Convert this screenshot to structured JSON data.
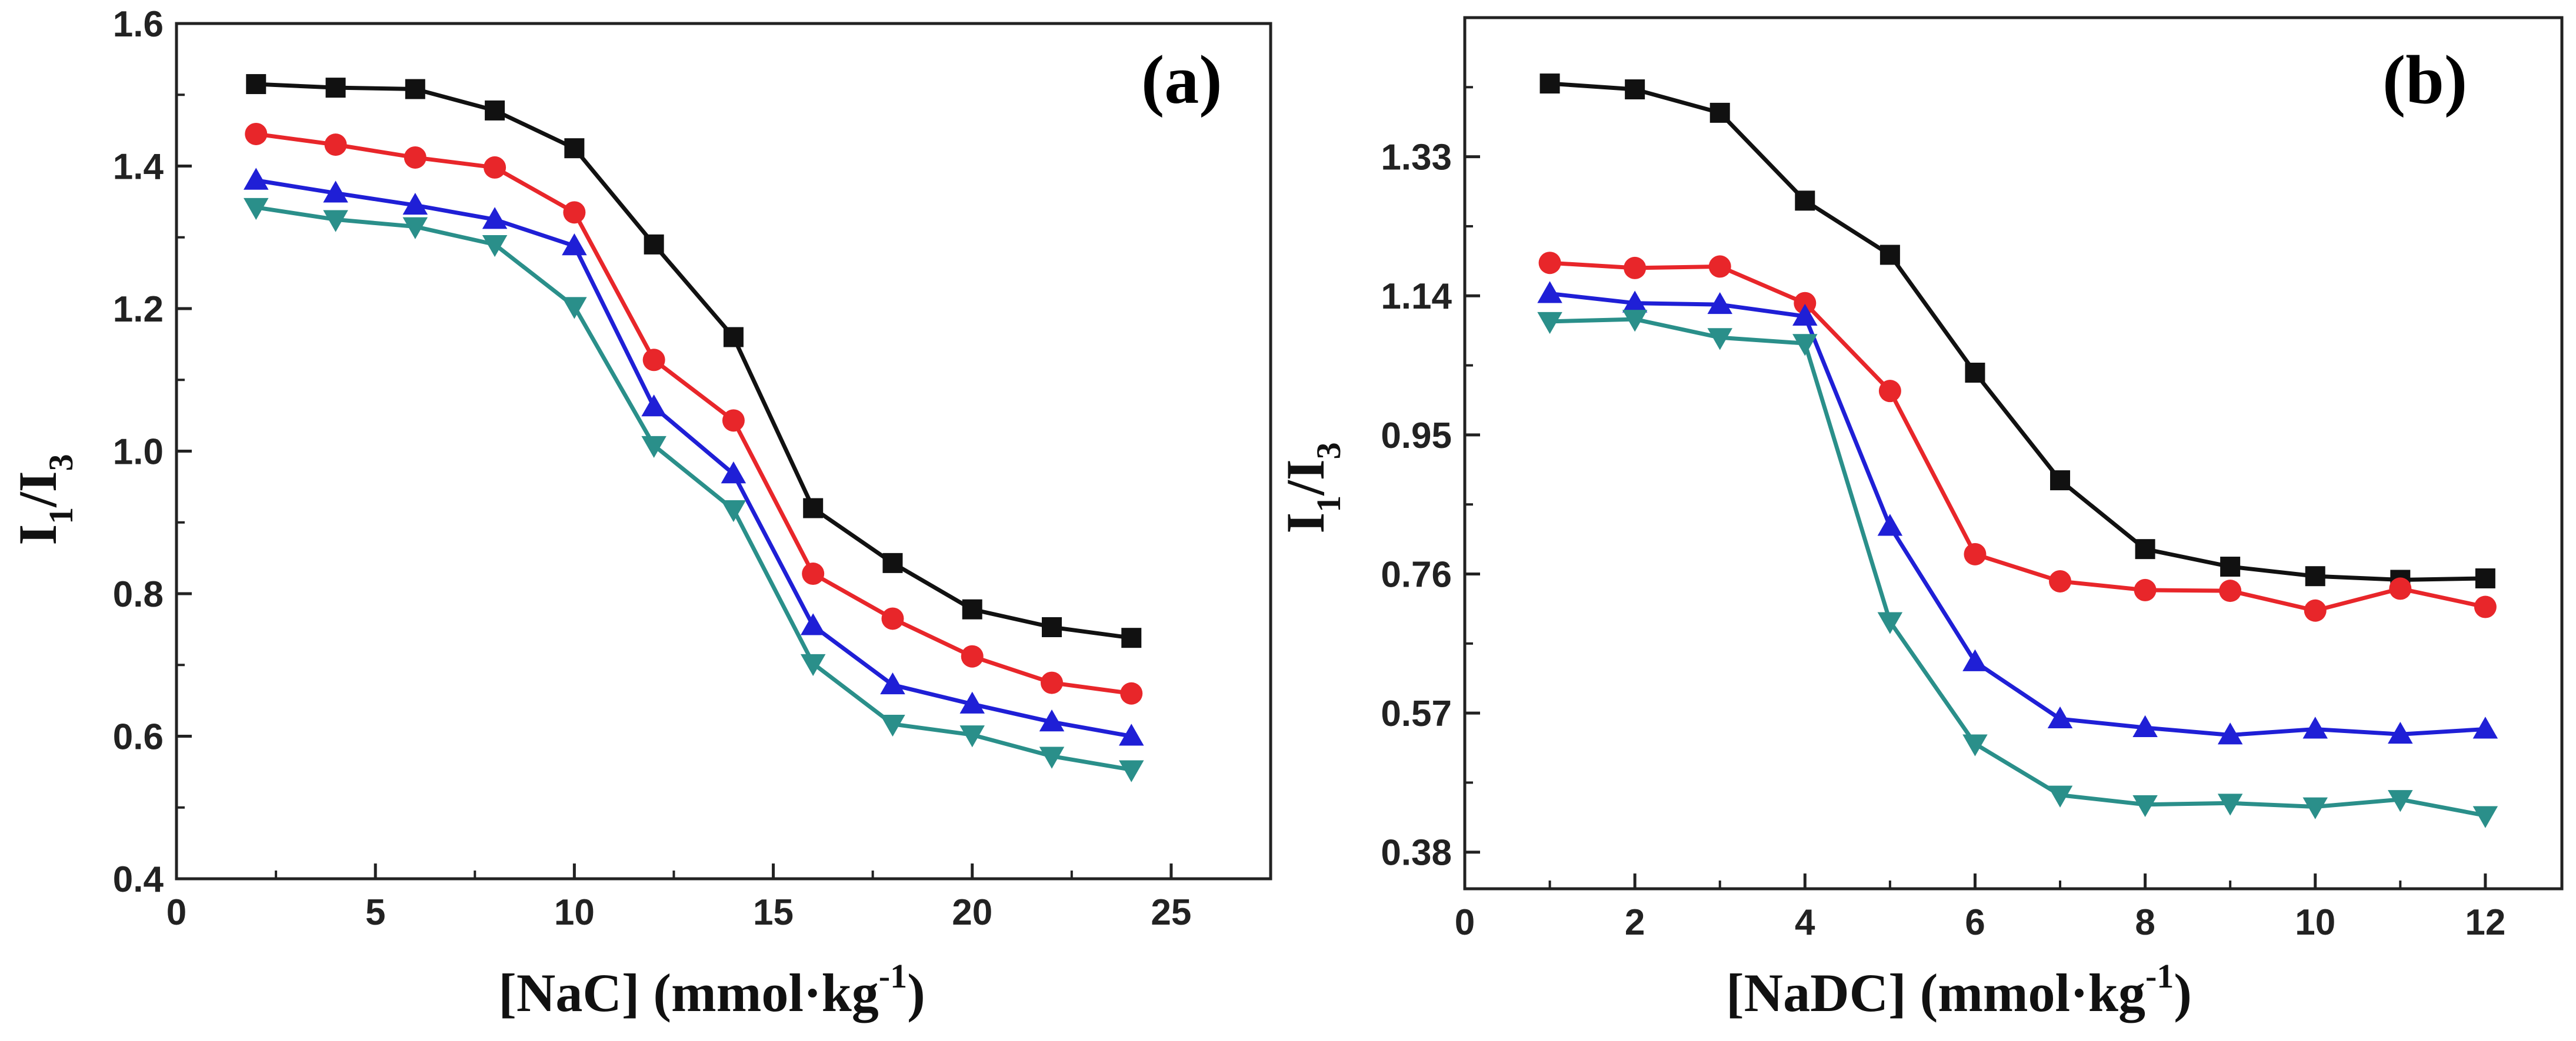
{
  "colors": {
    "black": "#111111",
    "red": "#e8262a",
    "blue": "#1f1fd6",
    "teal": "#2a8f8a",
    "axis": "#222222"
  },
  "chart_data": [
    {
      "id": "a",
      "type": "line",
      "panel_label": "(a)",
      "xlabel_main": "[NaC] (mmol·kg",
      "xlabel_sup": "-1",
      "xlabel_end": ")",
      "ylabel_main": "I",
      "ylabel_sub1": "1",
      "ylabel_mid": "/I",
      "ylabel_sub2": "3",
      "xlim": [
        0,
        27.5
      ],
      "ylim": [
        0.4,
        1.6
      ],
      "xticks": [
        0,
        5,
        10,
        15,
        20,
        25
      ],
      "xtick_labels": [
        "0",
        "5",
        "10",
        "15",
        "20",
        "25"
      ],
      "yticks": [
        0.4,
        0.6,
        0.8,
        1.0,
        1.2,
        1.4,
        1.6
      ],
      "ytick_labels": [
        "0.4",
        "0.6",
        "0.8",
        "1.0",
        "1.2",
        "1.4",
        "1.6"
      ],
      "x": [
        2,
        4,
        6,
        8,
        10,
        12,
        14,
        16,
        18,
        20,
        22,
        24
      ],
      "series": [
        {
          "name": "black-square",
          "color": "black",
          "marker": "square",
          "values": [
            1.515,
            1.51,
            1.508,
            1.478,
            1.425,
            1.29,
            1.16,
            0.92,
            0.843,
            0.778,
            0.753,
            0.738
          ]
        },
        {
          "name": "red-circle",
          "color": "red",
          "marker": "circle",
          "values": [
            1.445,
            1.43,
            1.412,
            1.398,
            1.335,
            1.128,
            1.043,
            0.828,
            0.765,
            0.712,
            0.675,
            0.66
          ]
        },
        {
          "name": "blue-triangle",
          "color": "blue",
          "marker": "triangle-up",
          "values": [
            1.38,
            1.362,
            1.345,
            1.325,
            1.288,
            1.062,
            0.968,
            0.755,
            0.672,
            0.645,
            0.62,
            0.6
          ]
        },
        {
          "name": "teal-triangle-down",
          "color": "teal",
          "marker": "triangle-down",
          "values": [
            1.342,
            1.325,
            1.315,
            1.29,
            1.203,
            1.008,
            0.918,
            0.702,
            0.617,
            0.602,
            0.572,
            0.553
          ]
        }
      ]
    },
    {
      "id": "b",
      "type": "line",
      "panel_label": "(b)",
      "xlabel_main": "[NaDC] (mmol·kg",
      "xlabel_sup": "-1",
      "xlabel_end": ")",
      "ylabel_main": "I",
      "ylabel_sub1": "1",
      "ylabel_mid": "/I",
      "ylabel_sub2": "3",
      "xlim": [
        0,
        12.9
      ],
      "ylim": [
        0.33,
        1.52
      ],
      "xticks": [
        0,
        2,
        4,
        6,
        8,
        10,
        12
      ],
      "xtick_labels": [
        "0",
        "2",
        "4",
        "6",
        "8",
        "10",
        "12"
      ],
      "yticks": [
        0.38,
        0.57,
        0.76,
        0.95,
        1.14,
        1.33
      ],
      "ytick_labels": [
        "0.38",
        "0.57",
        "0.76",
        "0.95",
        "1.14",
        "1.33"
      ],
      "x": [
        1,
        2,
        3,
        4,
        5,
        6,
        7,
        8,
        9,
        10,
        11,
        12
      ],
      "series": [
        {
          "name": "black-square",
          "color": "black",
          "marker": "square",
          "values": [
            1.43,
            1.422,
            1.39,
            1.27,
            1.196,
            1.035,
            0.888,
            0.794,
            0.77,
            0.757,
            0.752,
            0.754
          ]
        },
        {
          "name": "red-circle",
          "color": "red",
          "marker": "circle",
          "values": [
            1.185,
            1.178,
            1.18,
            1.13,
            1.01,
            0.787,
            0.75,
            0.738,
            0.737,
            0.71,
            0.74,
            0.715
          ]
        },
        {
          "name": "blue-triangle",
          "color": "blue",
          "marker": "triangle-up",
          "values": [
            1.143,
            1.13,
            1.128,
            1.112,
            0.825,
            0.64,
            0.562,
            0.55,
            0.54,
            0.548,
            0.541,
            0.548
          ]
        },
        {
          "name": "teal-triangle-down",
          "color": "teal",
          "marker": "triangle-down",
          "values": [
            1.105,
            1.108,
            1.083,
            1.075,
            0.695,
            0.528,
            0.458,
            0.445,
            0.447,
            0.442,
            0.452,
            0.43
          ]
        }
      ]
    }
  ]
}
